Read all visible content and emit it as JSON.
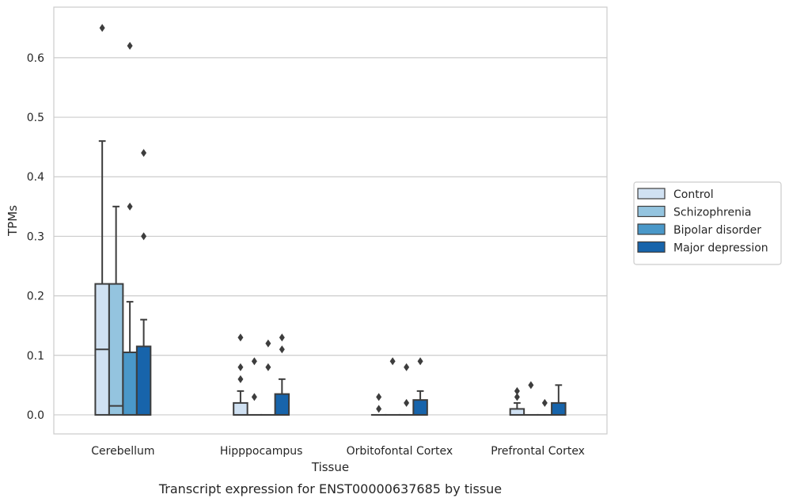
{
  "chart_data": {
    "type": "box",
    "title": "",
    "caption": "Transcript expression for ENST00000637685 by tissue",
    "xlabel": "Tissue",
    "ylabel": "TPMs",
    "ylim": [
      -0.032,
      0.685
    ],
    "yticks": [
      0.0,
      0.1,
      0.2,
      0.3,
      0.4,
      0.5,
      0.6
    ],
    "ytick_labels": [
      "0.0",
      "0.1",
      "0.2",
      "0.3",
      "0.4",
      "0.5",
      "0.6"
    ],
    "grid": "horizontal",
    "legend_position": "right",
    "categories": [
      "Cerebellum",
      "Hipppocampus",
      "Orbitofontal Cortex",
      "Prefrontal Cortex"
    ],
    "series": [
      {
        "name": "Control",
        "color": "#d0e1f2",
        "boxes": [
          {
            "q1": 0.0,
            "median": 0.11,
            "q3": 0.22,
            "whisker_low": 0.0,
            "whisker_high": 0.46,
            "outliers": [
              0.65
            ]
          },
          {
            "q1": 0.0,
            "median": 0.0,
            "q3": 0.02,
            "whisker_low": 0.0,
            "whisker_high": 0.04,
            "outliers": [
              0.06,
              0.08,
              0.13
            ]
          },
          {
            "q1": 0.0,
            "median": 0.0,
            "q3": 0.0,
            "whisker_low": 0.0,
            "whisker_high": 0.0,
            "outliers": [
              0.01,
              0.03
            ]
          },
          {
            "q1": 0.0,
            "median": 0.0,
            "q3": 0.01,
            "whisker_low": 0.0,
            "whisker_high": 0.02,
            "outliers": [
              0.03,
              0.04
            ]
          }
        ]
      },
      {
        "name": "Schizophrenia",
        "color": "#94c4df",
        "boxes": [
          {
            "q1": 0.0,
            "median": 0.015,
            "q3": 0.22,
            "whisker_low": 0.0,
            "whisker_high": 0.35,
            "outliers": []
          },
          {
            "q1": 0.0,
            "median": 0.0,
            "q3": 0.0,
            "whisker_low": 0.0,
            "whisker_high": 0.0,
            "outliers": [
              0.03,
              0.09
            ]
          },
          {
            "q1": 0.0,
            "median": 0.0,
            "q3": 0.0,
            "whisker_low": 0.0,
            "whisker_high": 0.0,
            "outliers": [
              0.09
            ]
          },
          {
            "q1": 0.0,
            "median": 0.0,
            "q3": 0.0,
            "whisker_low": 0.0,
            "whisker_high": 0.0,
            "outliers": [
              0.05
            ]
          }
        ]
      },
      {
        "name": "Bipolar disorder",
        "color": "#4a98c9",
        "boxes": [
          {
            "q1": 0.0,
            "median": 0.0,
            "q3": 0.105,
            "whisker_low": 0.0,
            "whisker_high": 0.19,
            "outliers": [
              0.35,
              0.62
            ]
          },
          {
            "q1": 0.0,
            "median": 0.0,
            "q3": 0.0,
            "whisker_low": 0.0,
            "whisker_high": 0.0,
            "outliers": [
              0.08,
              0.12
            ]
          },
          {
            "q1": 0.0,
            "median": 0.0,
            "q3": 0.0,
            "whisker_low": 0.0,
            "whisker_high": 0.0,
            "outliers": [
              0.02,
              0.08
            ]
          },
          {
            "q1": 0.0,
            "median": 0.0,
            "q3": 0.0,
            "whisker_low": 0.0,
            "whisker_high": 0.0,
            "outliers": [
              0.02
            ]
          }
        ]
      },
      {
        "name": "Major depression",
        "color": "#1764ab",
        "boxes": [
          {
            "q1": 0.0,
            "median": 0.0,
            "q3": 0.115,
            "whisker_low": 0.0,
            "whisker_high": 0.16,
            "outliers": [
              0.3,
              0.44
            ]
          },
          {
            "q1": 0.0,
            "median": 0.0,
            "q3": 0.035,
            "whisker_low": 0.0,
            "whisker_high": 0.06,
            "outliers": [
              0.11,
              0.13
            ]
          },
          {
            "q1": 0.0,
            "median": 0.0,
            "q3": 0.025,
            "whisker_low": 0.0,
            "whisker_high": 0.04,
            "outliers": [
              0.09
            ]
          },
          {
            "q1": 0.0,
            "median": 0.0,
            "q3": 0.02,
            "whisker_low": 0.0,
            "whisker_high": 0.05,
            "outliers": []
          }
        ]
      }
    ]
  }
}
